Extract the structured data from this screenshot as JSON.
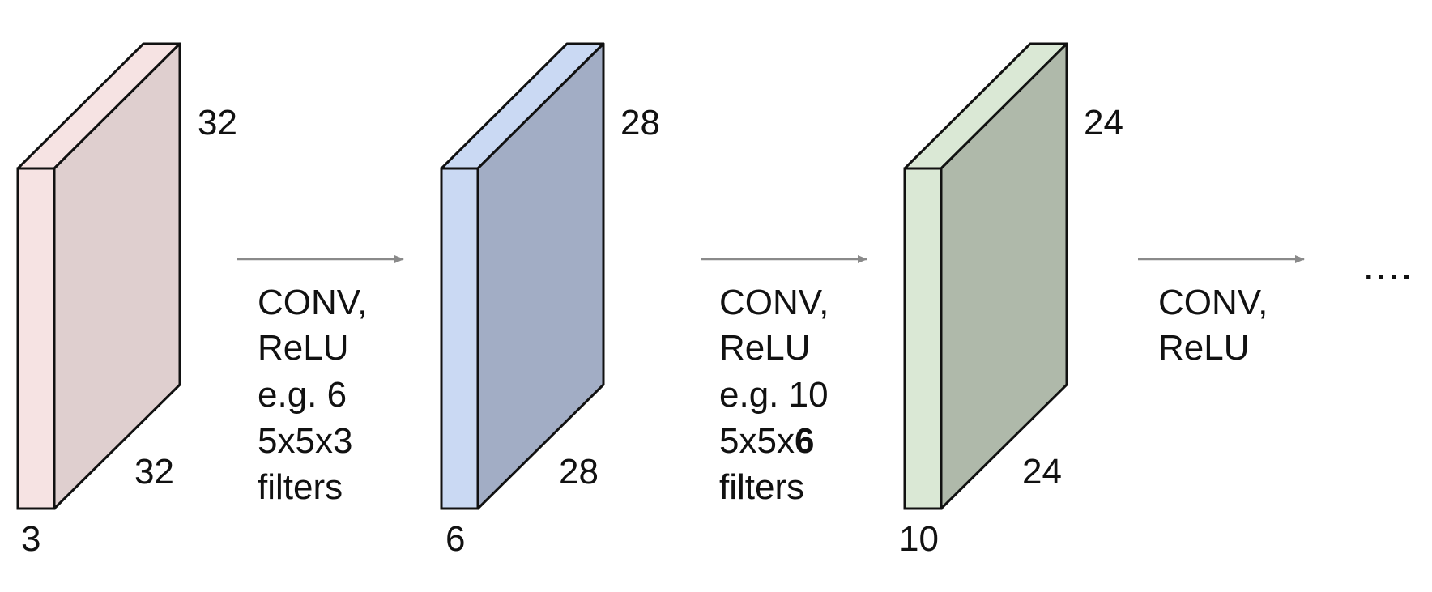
{
  "diagram": {
    "volumes": [
      {
        "front_color": "#f6e3e3",
        "side_color": "#dfcfcf",
        "height": "32",
        "width": "32",
        "depth": "3"
      },
      {
        "front_color": "#cad9f3",
        "side_color": "#a2adc5",
        "height": "28",
        "width": "28",
        "depth": "6"
      },
      {
        "front_color": "#dae8d5",
        "side_color": "#afb9aa",
        "height": "24",
        "width": "24",
        "depth": "10"
      }
    ],
    "steps": [
      {
        "line1": "CONV,",
        "line2": "ReLU",
        "note_color": "#2b3ef0",
        "note1": "e.g. 6",
        "note2": "5x5x3",
        "note2_bold": "",
        "note3": "filters"
      },
      {
        "line1": "CONV,",
        "line2": "ReLU",
        "note_color": "#4f8a3a",
        "note1": "e.g. 10",
        "note2": "5x5x",
        "note2_bold": "6",
        "note3": "filters"
      },
      {
        "line1": "CONV,",
        "line2": "ReLU"
      }
    ],
    "ellipsis": "...."
  }
}
